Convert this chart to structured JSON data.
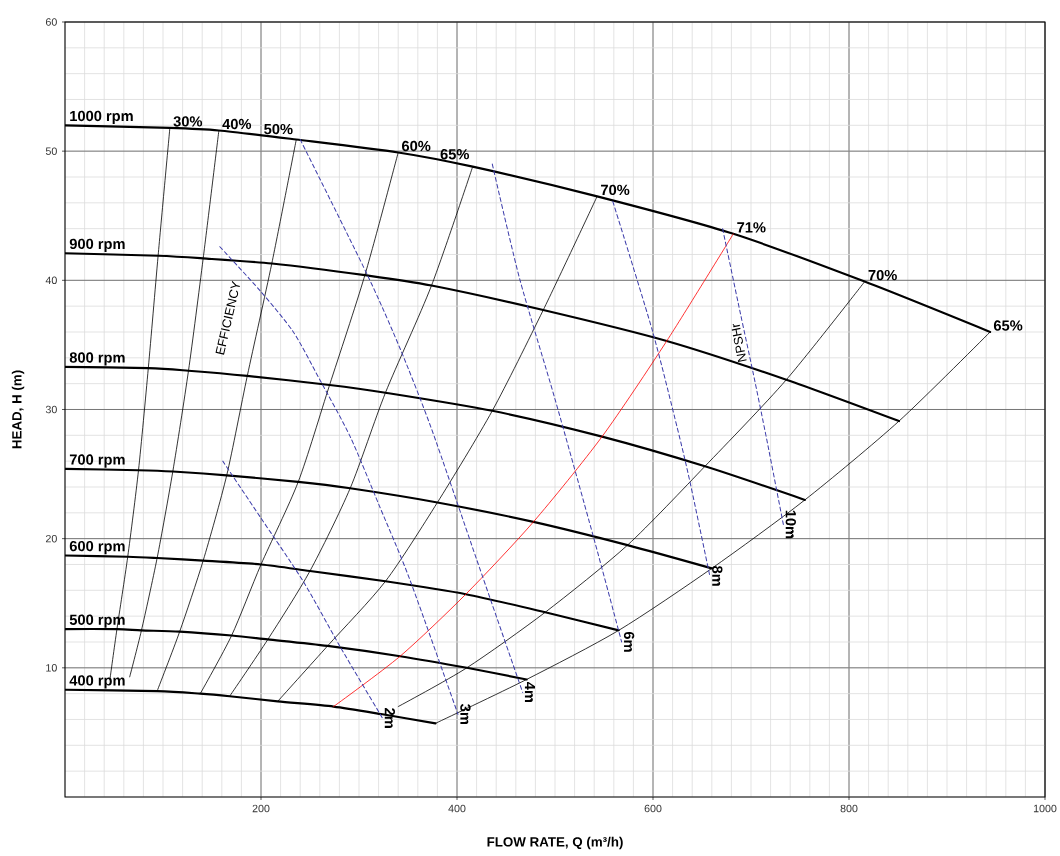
{
  "chart_data": {
    "type": "line",
    "xlabel": "FLOW RATE, Q (m³/h)",
    "ylabel": "HEAD, H (m)",
    "xlim": [
      0,
      1000
    ],
    "ylim": [
      0,
      60
    ],
    "xticks": [
      200,
      400,
      600,
      800,
      1000
    ],
    "yticks": [
      10,
      20,
      30,
      40,
      50,
      60
    ],
    "grid": true,
    "annotations": [
      "EFFICIENCY",
      "NPSHr"
    ],
    "series": [
      {
        "name": "1000 rpm",
        "color": "#000000",
        "x": [
          0,
          107,
          157,
          236,
          340,
          416,
          543,
          682,
          816,
          944
        ],
        "values": [
          52.0,
          51.8,
          51.6,
          50.9,
          49.9,
          48.8,
          46.5,
          43.6,
          39.9,
          36.0
        ]
      },
      {
        "name": "900 rpm",
        "color": "#000000",
        "x": [
          0,
          95,
          141,
          211,
          306,
          374,
          488,
          614,
          736,
          851
        ],
        "values": [
          42.1,
          41.9,
          41.7,
          41.3,
          40.4,
          39.6,
          37.7,
          35.3,
          32.3,
          29.1
        ]
      },
      {
        "name": "800 rpm",
        "color": "#000000",
        "x": [
          0,
          85,
          126,
          186,
          270,
          327,
          436,
          548,
          653,
          755
        ],
        "values": [
          33.3,
          33.2,
          33.0,
          32.6,
          31.9,
          31.3,
          29.9,
          27.9,
          25.6,
          23.0
        ]
      },
      {
        "name": "700 rpm",
        "color": "#000000",
        "x": [
          0,
          75,
          110,
          165,
          238,
          291,
          380,
          478,
          574,
          660
        ],
        "values": [
          25.4,
          25.3,
          25.2,
          24.9,
          24.4,
          23.9,
          22.8,
          21.3,
          19.5,
          17.7
        ]
      },
      {
        "name": "600 rpm",
        "color": "#000000",
        "x": [
          0,
          64,
          94,
          141,
          200,
          250,
          327,
          409,
          490,
          565
        ],
        "values": [
          18.7,
          18.6,
          18.5,
          18.3,
          18.0,
          17.5,
          16.7,
          15.7,
          14.3,
          12.9
        ]
      },
      {
        "name": "500 rpm",
        "color": "#000000",
        "x": [
          0,
          53,
          78,
          117,
          170,
          207,
          268,
          342,
          410,
          471
        ],
        "values": [
          13.0,
          13.0,
          12.9,
          12.8,
          12.5,
          12.2,
          11.7,
          10.9,
          10.0,
          9.1
        ]
      },
      {
        "name": "400 rpm",
        "color": "#000000",
        "x": [
          0,
          94,
          138,
          168,
          217,
          274,
          324,
          378
        ],
        "values": [
          8.3,
          8.2,
          8.0,
          7.8,
          7.4,
          7.0,
          6.4,
          5.7
        ]
      },
      {
        "name": "30%",
        "color": "#000000",
        "x": [
          46,
          53,
          64,
          75,
          85,
          95,
          107
        ],
        "values": [
          9.2,
          13.0,
          18.6,
          25.3,
          33.2,
          41.9,
          51.8
        ]
      },
      {
        "name": "40%",
        "color": "#000000",
        "x": [
          66,
          78,
          94,
          110,
          126,
          141,
          157
        ],
        "values": [
          9.3,
          12.9,
          18.5,
          25.2,
          33.0,
          41.7,
          51.6
        ]
      },
      {
        "name": "50%",
        "color": "#000000",
        "x": [
          94,
          117,
          141,
          165,
          186,
          211,
          236
        ],
        "values": [
          8.2,
          12.8,
          18.3,
          24.9,
          32.6,
          41.3,
          50.9
        ]
      },
      {
        "name": "60%",
        "color": "#000000",
        "x": [
          138,
          170,
          200,
          238,
          270,
          306,
          340
        ],
        "values": [
          8.0,
          12.5,
          18.0,
          24.4,
          31.9,
          40.4,
          49.9
        ]
      },
      {
        "name": "65%",
        "color": "#000000",
        "x": [
          168,
          207,
          250,
          291,
          327,
          374,
          416
        ],
        "values": [
          7.8,
          12.2,
          17.5,
          23.9,
          31.3,
          39.6,
          48.8
        ]
      },
      {
        "name": "70%",
        "color": "#000000",
        "x": [
          217,
          268,
          327,
          380,
          436,
          488,
          543
        ],
        "values": [
          7.4,
          11.7,
          16.7,
          22.8,
          29.9,
          37.7,
          46.5
        ]
      },
      {
        "name": "71%",
        "color": "#ff0000",
        "x": [
          274,
          342,
          409,
          478,
          548,
          614,
          682
        ],
        "values": [
          7.0,
          10.9,
          15.7,
          21.3,
          27.9,
          35.3,
          43.6
        ]
      },
      {
        "name": "70%",
        "color": "#000000",
        "x": [
          340,
          410,
          490,
          574,
          653,
          736,
          816
        ],
        "values": [
          7.0,
          10.0,
          14.3,
          19.5,
          25.6,
          32.3,
          39.9
        ]
      },
      {
        "name": "65%",
        "color": "#000000",
        "x": [
          378,
          471,
          565,
          660,
          755,
          851,
          944
        ],
        "values": [
          5.7,
          9.1,
          12.9,
          17.7,
          23.0,
          29.1,
          36.0
        ]
      },
      {
        "name": "2m",
        "color": "#3c3caa",
        "line_style": "dashed",
        "x": [
          161,
          199,
          243,
          281,
          324
        ],
        "values": [
          26.0,
          21.7,
          16.7,
          11.6,
          6.1
        ]
      },
      {
        "name": "3m",
        "color": "#3c3caa",
        "line_style": "dashed",
        "x": [
          158,
          199,
          233,
          260,
          291,
          321,
          352,
          401
        ],
        "values": [
          42.6,
          39.2,
          36.0,
          32.3,
          27.9,
          22.5,
          16.8,
          6.4
        ]
      },
      {
        "name": "4m",
        "color": "#3c3caa",
        "line_style": "dashed",
        "x": [
          240,
          308,
          342,
          374,
          420,
          467
        ],
        "values": [
          50.9,
          40.5,
          34.7,
          28.5,
          18.4,
          8.1
        ]
      },
      {
        "name": "6m",
        "color": "#3c3caa",
        "line_style": "dashed",
        "x": [
          436,
          464,
          500,
          539,
          568
        ],
        "values": [
          49.0,
          40.1,
          30.8,
          20.2,
          12.0
        ]
      },
      {
        "name": "8m",
        "color": "#3c3caa",
        "line_style": "dashed",
        "x": [
          559,
          599,
          625,
          638,
          658
        ],
        "values": [
          46.1,
          36.2,
          28.5,
          24.3,
          17.1
        ]
      },
      {
        "name": "10m",
        "color": "#3c3caa",
        "line_style": "dashed",
        "x": [
          671,
          689,
          702,
          716,
          733
        ],
        "values": [
          44.0,
          37.5,
          32.9,
          27.7,
          21.1
        ]
      }
    ]
  }
}
